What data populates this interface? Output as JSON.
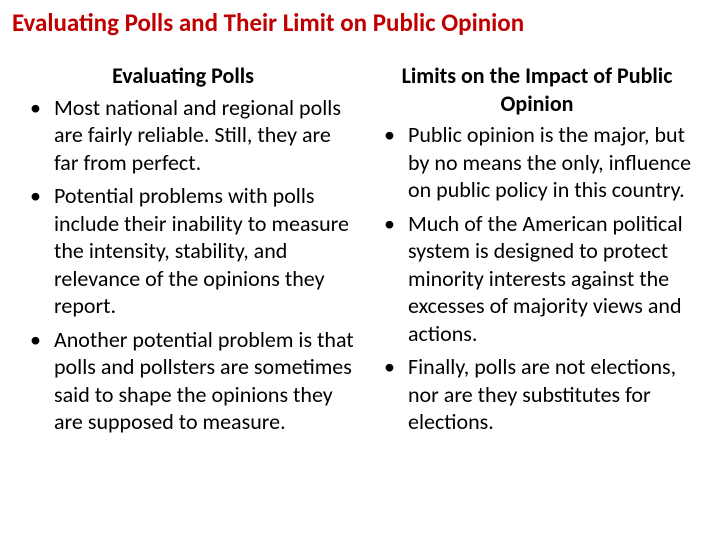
{
  "title": "Evaluating Polls and Their Limit on Public Opinion",
  "left": {
    "heading": "Evaluating Polls",
    "bullets": [
      "Most national and regional polls are fairly reliable. Still, they are far from perfect.",
      "Potential problems with polls include their inability to measure the intensity, stability, and relevance of the opinions they report.",
      "Another potential problem is that polls and pollsters are sometimes said to shape the opinions they are supposed to measure."
    ]
  },
  "right": {
    "heading": "Limits on the Impact of Public Opinion",
    "bullets": [
      "Public opinion is the major, but by no means the only, influence on public policy in this country.",
      "Much of the American political system is designed to protect minority interests against the excesses of majority views and actions.",
      "Finally, polls are not elections, nor are they substitutes for elections."
    ]
  },
  "colors": {
    "title": "#c00000",
    "text": "#000000",
    "background": "#ffffff"
  },
  "fontsize": {
    "title": 25,
    "heading": 22,
    "body": 22
  }
}
